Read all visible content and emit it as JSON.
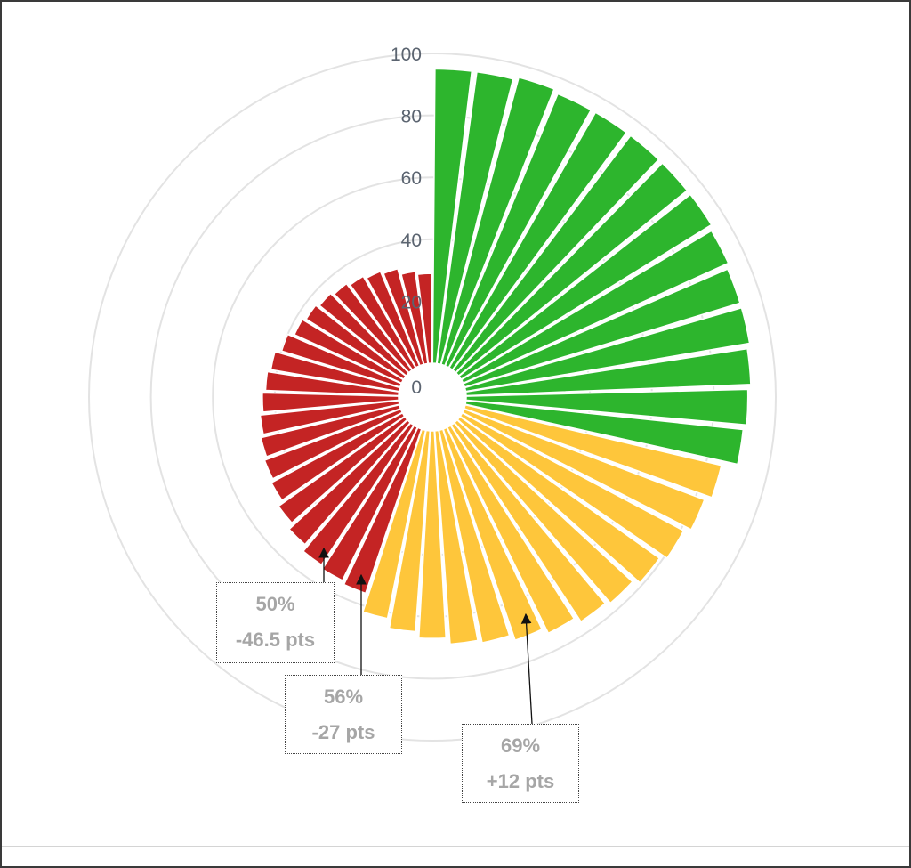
{
  "chart_data": {
    "type": "polar-bar",
    "r_ticks": [
      "0",
      "20",
      "40",
      "60",
      "80",
      "100"
    ],
    "rmax": 100,
    "colors": {
      "green": "#2db52d",
      "yellow": "#fec63b",
      "red": "#c42424"
    },
    "bars": [
      {
        "value": 95,
        "color": "green"
      },
      {
        "value": 95,
        "color": "green"
      },
      {
        "value": 96,
        "color": "green"
      },
      {
        "value": 95,
        "color": "green"
      },
      {
        "value": 95,
        "color": "green"
      },
      {
        "value": 95,
        "color": "green"
      },
      {
        "value": 95,
        "color": "green"
      },
      {
        "value": 95,
        "color": "green"
      },
      {
        "value": 94,
        "color": "green"
      },
      {
        "value": 93,
        "color": "green"
      },
      {
        "value": 93,
        "color": "green"
      },
      {
        "value": 92,
        "color": "green"
      },
      {
        "value": 91,
        "color": "green"
      },
      {
        "value": 90,
        "color": "green"
      },
      {
        "value": 85,
        "color": "yellow"
      },
      {
        "value": 83,
        "color": "yellow"
      },
      {
        "value": 81,
        "color": "yellow"
      },
      {
        "value": 79,
        "color": "yellow"
      },
      {
        "value": 77,
        "color": "yellow"
      },
      {
        "value": 76,
        "color": "yellow"
      },
      {
        "value": 74,
        "color": "yellow"
      },
      {
        "value": 72,
        "color": "yellow"
      },
      {
        "value": 70,
        "color": "yellow"
      },
      {
        "value": 69,
        "color": "yellow"
      },
      {
        "value": 67,
        "color": "yellow"
      },
      {
        "value": 65,
        "color": "yellow"
      },
      {
        "value": 62,
        "color": "yellow"
      },
      {
        "value": 56,
        "color": "red"
      },
      {
        "value": 55,
        "color": "red"
      },
      {
        "value": 54,
        "color": "red"
      },
      {
        "value": 52,
        "color": "red"
      },
      {
        "value": 50,
        "color": "red"
      },
      {
        "value": 48,
        "color": "red"
      },
      {
        "value": 47,
        "color": "red"
      },
      {
        "value": 46,
        "color": "red"
      },
      {
        "value": 45,
        "color": "red"
      },
      {
        "value": 44,
        "color": "red"
      },
      {
        "value": 43,
        "color": "red"
      },
      {
        "value": 42,
        "color": "red"
      },
      {
        "value": 40,
        "color": "red"
      },
      {
        "value": 38,
        "color": "red"
      },
      {
        "value": 37,
        "color": "red"
      },
      {
        "value": 36,
        "color": "red"
      },
      {
        "value": 35,
        "color": "red"
      },
      {
        "value": 34,
        "color": "red"
      },
      {
        "value": 33,
        "color": "red"
      },
      {
        "value": 32,
        "color": "red"
      },
      {
        "value": 30,
        "color": "red"
      },
      {
        "value": 29,
        "color": "red"
      }
    ],
    "annotations": [
      {
        "pct": "50%",
        "delta": "-46.5 pts"
      },
      {
        "pct": "56%",
        "delta": "-27 pts"
      },
      {
        "pct": "69%",
        "delta": "+12 pts"
      }
    ]
  }
}
